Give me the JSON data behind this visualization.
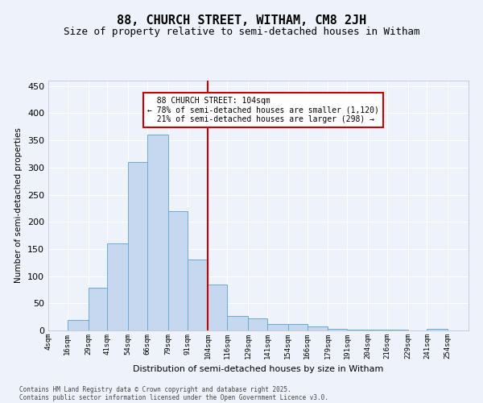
{
  "title": "88, CHURCH STREET, WITHAM, CM8 2JH",
  "subtitle": "Size of property relative to semi-detached houses in Witham",
  "xlabel": "Distribution of semi-detached houses by size in Witham",
  "ylabel": "Number of semi-detached properties",
  "property_size": 104,
  "property_label": "88 CHURCH STREET: 104sqm",
  "pct_smaller": 78,
  "count_smaller": 1120,
  "pct_larger": 21,
  "count_larger": 298,
  "bin_edges": [
    4,
    16,
    29,
    41,
    54,
    66,
    79,
    91,
    104,
    116,
    129,
    141,
    154,
    166,
    179,
    191,
    204,
    216,
    229,
    241,
    254
  ],
  "bin_labels": [
    "4sqm",
    "16sqm",
    "29sqm",
    "41sqm",
    "54sqm",
    "66sqm",
    "79sqm",
    "91sqm",
    "104sqm",
    "116sqm",
    "129sqm",
    "141sqm",
    "154sqm",
    "166sqm",
    "179sqm",
    "191sqm",
    "204sqm",
    "216sqm",
    "229sqm",
    "241sqm",
    "254sqm"
  ],
  "counts": [
    0,
    20,
    78,
    160,
    310,
    360,
    220,
    130,
    85,
    27,
    22,
    12,
    12,
    7,
    3,
    2,
    1,
    1,
    0,
    3
  ],
  "bar_color": "#c5d8f0",
  "bar_edge_color": "#6aaad4",
  "vline_color": "#cc0000",
  "bg_color": "#eef2fb",
  "grid_color": "#ffffff",
  "footer1": "Contains HM Land Registry data © Crown copyright and database right 2025.",
  "footer2": "Contains public sector information licensed under the Open Government Licence v3.0.",
  "ylim": [
    0,
    460
  ],
  "title_fontsize": 11,
  "subtitle_fontsize": 9,
  "annotation_fontsize": 7,
  "xlabel_fontsize": 8,
  "ylabel_fontsize": 7.5
}
